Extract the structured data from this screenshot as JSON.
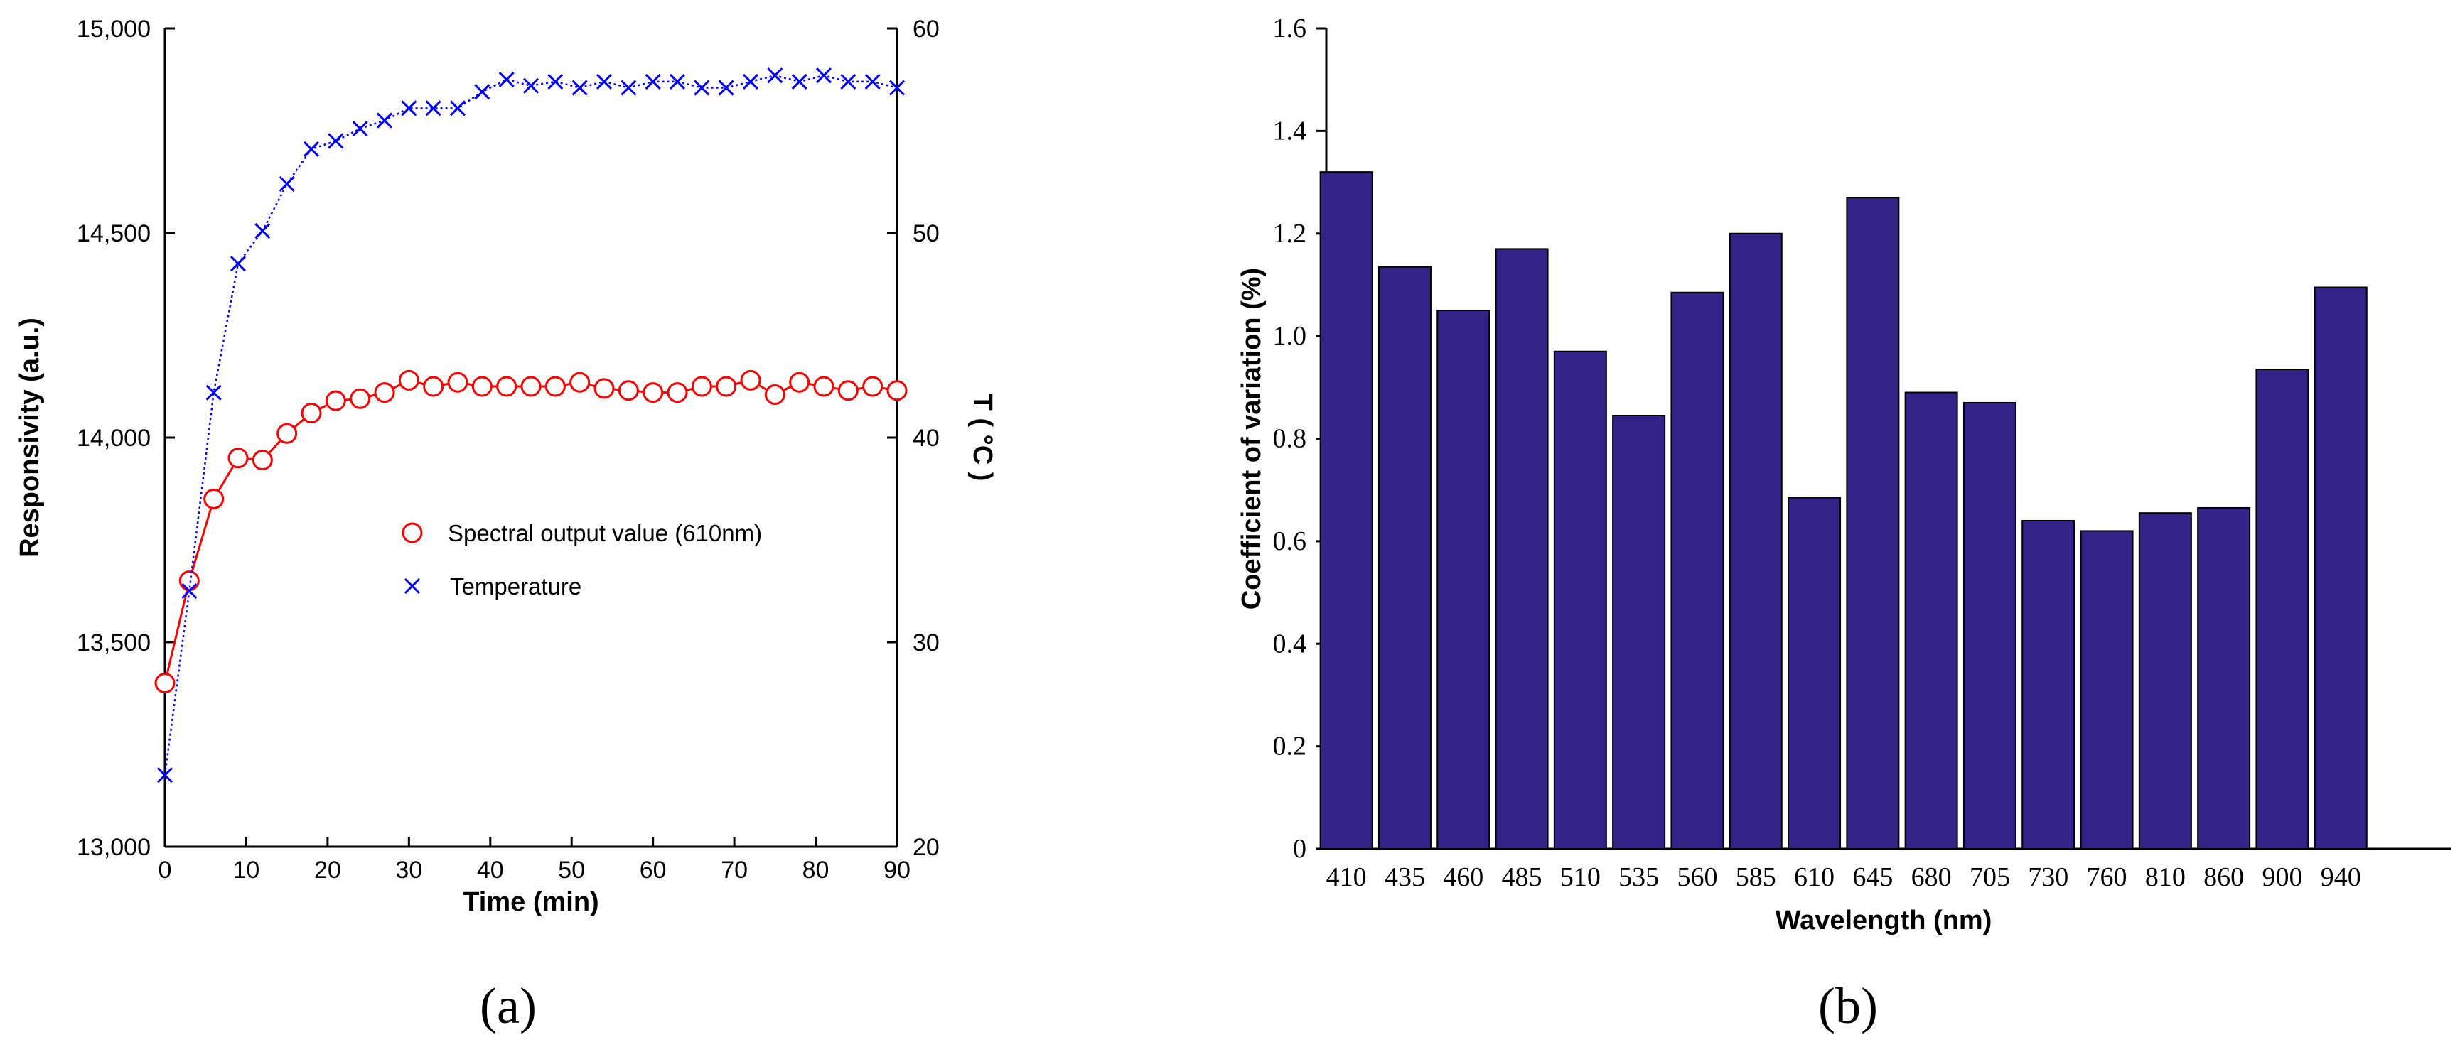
{
  "chart_data": [
    {
      "panel": "a",
      "type": "line",
      "xlabel": "Time (min)",
      "ylabel": "Responsivity (a.u.)",
      "y2label": "T ( °C )",
      "xlim": [
        0,
        90
      ],
      "ylim": [
        13000,
        15000
      ],
      "y2lim": [
        20,
        60
      ],
      "xticks": [
        0,
        10,
        20,
        30,
        40,
        50,
        60,
        70,
        80,
        90
      ],
      "yticks": [
        13000,
        13500,
        14000,
        14500,
        15000
      ],
      "ytick_labels": [
        "13,000",
        "13,500",
        "14,000",
        "14,500",
        "15,000"
      ],
      "y2ticks": [
        20,
        30,
        40,
        50,
        60
      ],
      "series": [
        {
          "name": "Spectral output value (610nm)",
          "axis": "left",
          "color": "#ff0000",
          "marker": "circle",
          "x": [
            0,
            3,
            6,
            9,
            12,
            15,
            18,
            21,
            24,
            27,
            30,
            33,
            36,
            39,
            42,
            45,
            48,
            51,
            54,
            57,
            60,
            63,
            66,
            69,
            72,
            75,
            78,
            81,
            84,
            87,
            90
          ],
          "values": [
            13400,
            13650,
            13850,
            13950,
            13945,
            14010,
            14060,
            14090,
            14095,
            14110,
            14140,
            14125,
            14135,
            14125,
            14125,
            14125,
            14125,
            14135,
            14120,
            14115,
            14110,
            14110,
            14125,
            14125,
            14140,
            14105,
            14135,
            14125,
            14115,
            14125,
            14115
          ]
        },
        {
          "name": "Temperature",
          "axis": "right",
          "color": "#0000ff",
          "marker": "x",
          "x": [
            0,
            3,
            6,
            9,
            12,
            15,
            18,
            21,
            24,
            27,
            30,
            33,
            36,
            39,
            42,
            45,
            48,
            51,
            54,
            57,
            60,
            63,
            66,
            69,
            72,
            75,
            78,
            81,
            84,
            87,
            90
          ],
          "values": [
            23.5,
            32.5,
            42.2,
            48.5,
            50.1,
            52.4,
            54.1,
            54.5,
            55.1,
            55.5,
            56.1,
            56.1,
            56.1,
            56.9,
            57.5,
            57.2,
            57.4,
            57.1,
            57.4,
            57.1,
            57.4,
            57.4,
            57.1,
            57.1,
            57.4,
            57.7,
            57.4,
            57.7,
            57.4,
            57.4,
            57.1
          ]
        }
      ]
    },
    {
      "panel": "b",
      "type": "bar",
      "xlabel": "Wavelength (nm)",
      "ylabel": "Coefficient of variation (%)",
      "ylim": [
        0,
        1.6
      ],
      "yticks": [
        0,
        0.2,
        0.4,
        0.6,
        0.8,
        1.0,
        1.2,
        1.4,
        1.6
      ],
      "ytick_labels": [
        "0",
        "0.2",
        "0.4",
        "0.6",
        "0.8",
        "1.0",
        "1.2",
        "1.4",
        "1.6"
      ],
      "bar_color": "#332288",
      "categories": [
        "410",
        "435",
        "460",
        "485",
        "510",
        "535",
        "560",
        "585",
        "610",
        "645",
        "680",
        "705",
        "730",
        "760",
        "810",
        "860",
        "900",
        "940"
      ],
      "values": [
        1.32,
        1.135,
        1.05,
        1.17,
        0.97,
        0.845,
        1.085,
        1.2,
        0.685,
        1.27,
        0.89,
        0.87,
        0.64,
        0.62,
        0.655,
        0.665,
        0.935,
        1.095
      ]
    }
  ],
  "panel_labels": [
    "(a)",
    "(b)"
  ]
}
